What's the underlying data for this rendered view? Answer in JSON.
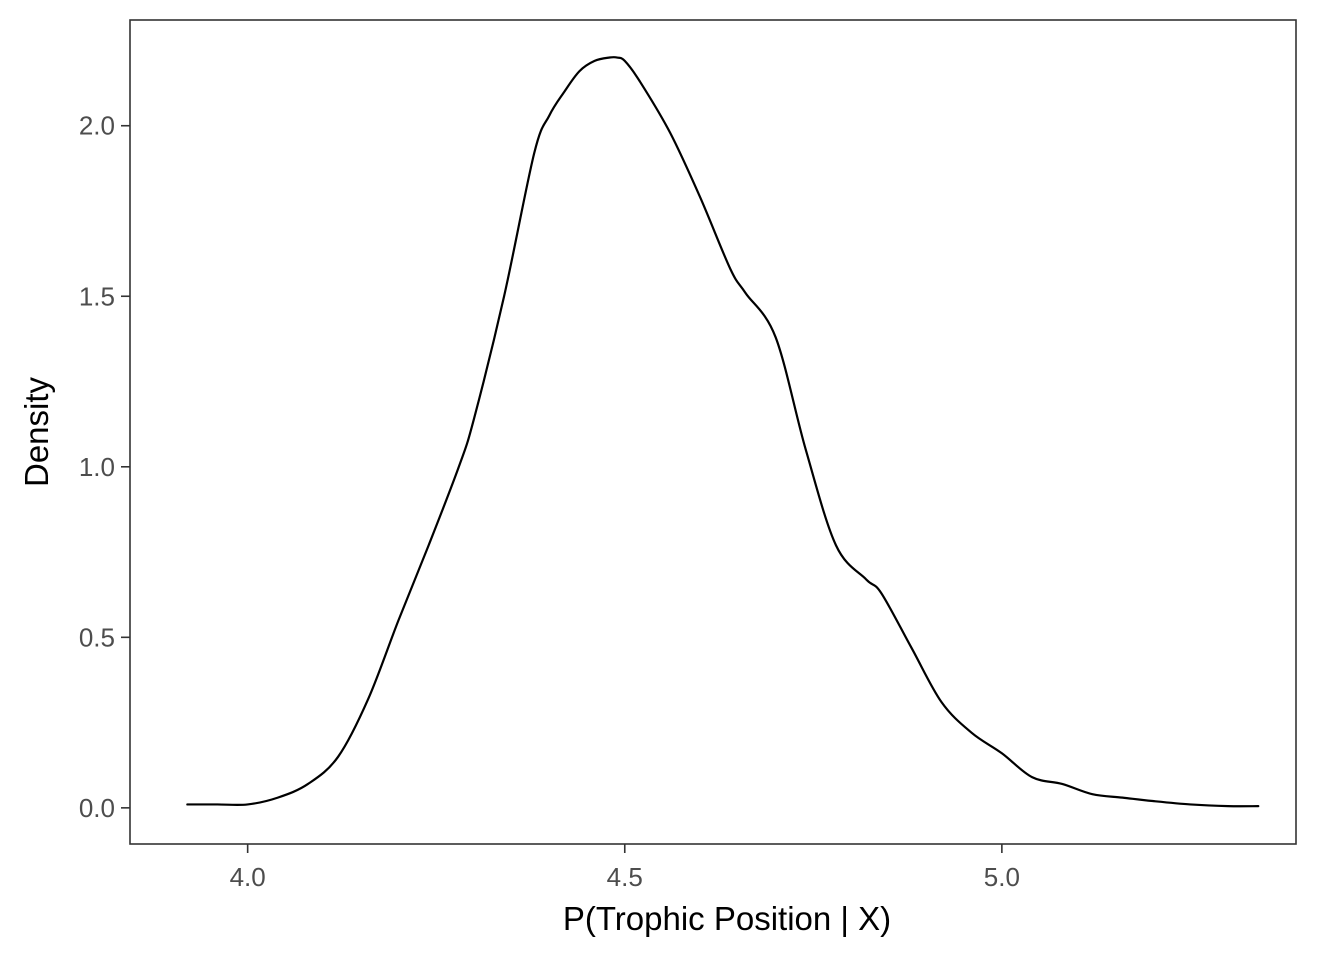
{
  "chart_data": {
    "type": "line",
    "xlabel": "P(Trophic Position | X)",
    "ylabel": "Density",
    "xlim": [
      3.844,
      5.39
    ],
    "ylim": [
      -0.106,
      2.31
    ],
    "x_ticks": [
      {
        "value": 4.0,
        "label": "4.0"
      },
      {
        "value": 4.5,
        "label": "4.5"
      },
      {
        "value": 5.0,
        "label": "5.0"
      }
    ],
    "y_ticks": [
      {
        "value": 0.0,
        "label": "0.0"
      },
      {
        "value": 0.5,
        "label": "0.5"
      },
      {
        "value": 1.0,
        "label": "1.0"
      },
      {
        "value": 1.5,
        "label": "1.5"
      },
      {
        "value": 2.0,
        "label": "2.0"
      }
    ],
    "grid": false,
    "legend": "none",
    "series": [
      {
        "color": "#000000",
        "x": [
          3.92,
          3.96,
          4.0,
          4.04,
          4.08,
          4.12,
          4.16,
          4.2,
          4.24,
          4.28,
          4.3,
          4.34,
          4.38,
          4.4,
          4.42,
          4.44,
          4.46,
          4.48,
          4.49,
          4.5,
          4.52,
          4.56,
          4.6,
          4.64,
          4.66,
          4.7,
          4.74,
          4.78,
          4.82,
          4.84,
          4.88,
          4.92,
          4.96,
          5.0,
          5.04,
          5.08,
          5.12,
          5.16,
          5.2,
          5.25,
          5.3,
          5.34
        ],
        "y": [
          0.01,
          0.01,
          0.01,
          0.03,
          0.07,
          0.15,
          0.32,
          0.55,
          0.77,
          1.0,
          1.14,
          1.5,
          1.92,
          2.03,
          2.1,
          2.16,
          2.19,
          2.2,
          2.2,
          2.19,
          2.13,
          1.98,
          1.79,
          1.58,
          1.51,
          1.38,
          1.05,
          0.77,
          0.67,
          0.63,
          0.47,
          0.31,
          0.22,
          0.16,
          0.09,
          0.07,
          0.04,
          0.03,
          0.02,
          0.01,
          0.005,
          0.005
        ]
      }
    ]
  }
}
